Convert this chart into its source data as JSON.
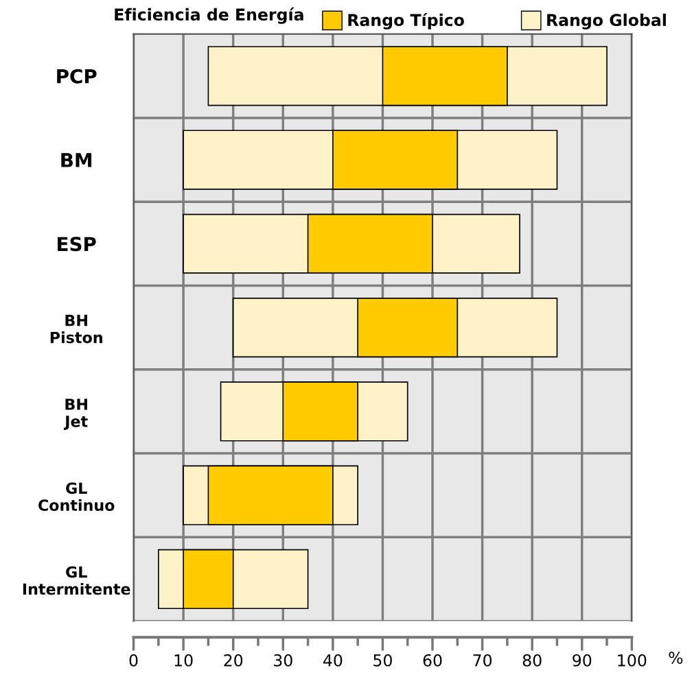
{
  "chart_data": {
    "type": "bar",
    "orientation": "horizontal",
    "legend_title": "Eficiencia de Energía",
    "xlabel": "%",
    "categories": [
      "PCP",
      "BM",
      "ESP",
      "BH\nPiston",
      "BH\nJet",
      "GL\nContinuo",
      "GL\nIntermitente"
    ],
    "series": [
      {
        "name": "Rango Global",
        "color": "#fff2c6",
        "base": [
          15,
          10,
          10,
          20,
          17.5,
          10,
          5
        ],
        "values": [
          80,
          75,
          67.5,
          65,
          37.5,
          35,
          30
        ]
      },
      {
        "name": "Rango Típico",
        "color": "#ffcc00",
        "base": [
          50,
          40,
          35,
          45,
          30,
          15,
          10
        ],
        "values": [
          25,
          25,
          25,
          20,
          15,
          25,
          10
        ]
      }
    ],
    "xlim": [
      0,
      100
    ],
    "xticks": [
      0,
      10,
      20,
      30,
      40,
      50,
      60,
      70,
      80,
      90,
      100
    ],
    "grid": true,
    "legend": "top"
  }
}
